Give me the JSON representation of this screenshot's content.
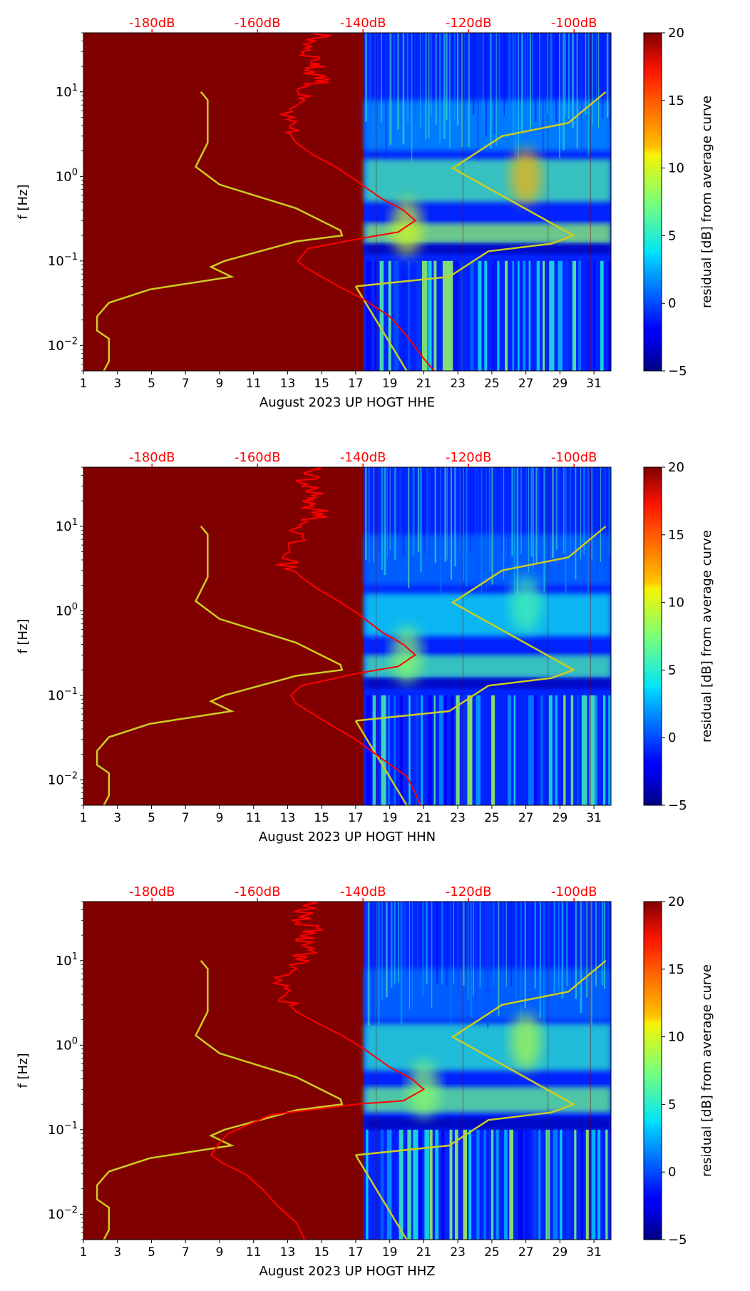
{
  "figure": {
    "background": "#ffffff",
    "colormap": "jet",
    "left_fill_color": "#800000",
    "psd_curve_color": "#ff0000",
    "noise_model_color": "#cccc22"
  },
  "chart_data": [
    {
      "type": "heatmap",
      "xlabel": "August 2023 UP HOGT  HHE",
      "ylabel": "f [Hz]",
      "x_ticks": [
        "1",
        "3",
        "5",
        "7",
        "9",
        "11",
        "13",
        "15",
        "17",
        "19",
        "21",
        "23",
        "25",
        "27",
        "29",
        "31"
      ],
      "x_range": [
        1,
        32
      ],
      "y_scale": "log",
      "y_range": [
        0.005,
        50
      ],
      "y_tick_labels": [
        {
          "base": "10",
          "exp": "1",
          "value": 10
        },
        {
          "base": "10",
          "exp": "0",
          "value": 1
        },
        {
          "base": "10",
          "exp": "−1",
          "value": 0.1
        },
        {
          "base": "10",
          "exp": "−2",
          "value": 0.01
        }
      ],
      "top_axis": {
        "color": "#ff0000",
        "labels": [
          "-180dB",
          "-160dB",
          "-140dB",
          "-120dB",
          "-100dB"
        ],
        "values": [
          -180,
          -160,
          -140,
          -120,
          -100
        ],
        "range": [
          -193,
          -93
        ]
      },
      "data_start_day": 17.5,
      "colorbar": {
        "label": "residual [dB] from average curve",
        "range": [
          -5,
          20
        ],
        "ticks": [
          "20",
          "15",
          "10",
          "5",
          "0",
          "−5"
        ],
        "values": [
          20,
          15,
          10,
          5,
          0,
          -5
        ]
      },
      "noise_model_curve": [
        [
          7.9,
          10
        ],
        [
          8.3,
          8
        ],
        [
          8.3,
          2.5
        ],
        [
          7.6,
          1.3
        ],
        [
          9.0,
          0.8
        ],
        [
          13.5,
          0.42
        ],
        [
          16.1,
          0.23
        ],
        [
          16.2,
          0.2
        ],
        [
          13.5,
          0.17
        ],
        [
          9.3,
          0.1
        ],
        [
          8.5,
          0.085
        ],
        [
          9.7,
          0.065
        ],
        [
          4.9,
          0.046
        ],
        [
          2.5,
          0.032
        ],
        [
          1.8,
          0.022
        ],
        [
          1.8,
          0.015
        ],
        [
          2.5,
          0.012
        ],
        [
          2.5,
          0.0065
        ],
        [
          2.2,
          0.005
        ]
      ],
      "psd_curve": [
        [
          15.0,
          50
        ],
        [
          14.5,
          40
        ],
        [
          14.2,
          30
        ],
        [
          14.8,
          22
        ],
        [
          14.3,
          18
        ],
        [
          15.2,
          14
        ],
        [
          14.0,
          11
        ],
        [
          13.5,
          8
        ],
        [
          12.8,
          5
        ],
        [
          13.0,
          3.5
        ],
        [
          13.5,
          2.5
        ],
        [
          14.5,
          1.8
        ],
        [
          15.8,
          1.3
        ],
        [
          17.0,
          0.9
        ],
        [
          18.5,
          0.55
        ],
        [
          19.8,
          0.4
        ],
        [
          20.5,
          0.3
        ],
        [
          19.5,
          0.22
        ],
        [
          17.0,
          0.18
        ],
        [
          14.2,
          0.14
        ],
        [
          13.6,
          0.1
        ],
        [
          14.0,
          0.085
        ],
        [
          15.0,
          0.065
        ],
        [
          16.0,
          0.05
        ],
        [
          17.5,
          0.035
        ],
        [
          19.0,
          0.022
        ],
        [
          20.0,
          0.013
        ],
        [
          21.0,
          0.007
        ],
        [
          21.6,
          0.005
        ]
      ],
      "background_curve": [
        [
          17.0,
          0.05
        ],
        [
          20.0,
          0.005
        ]
      ],
      "spectral_bands": [
        {
          "f_lo": 0.16,
          "f_hi": 0.28,
          "level": 8
        },
        {
          "f_lo": 0.5,
          "f_hi": 1.6,
          "level": 6
        },
        {
          "f_lo": 0.12,
          "f_hi": 0.16,
          "level": -4
        },
        {
          "f_lo": 2,
          "f_hi": 8,
          "level": 2
        }
      ],
      "hotspots": [
        {
          "day": 27,
          "f": 1.0,
          "level": 12
        },
        {
          "day": 20,
          "f": 0.25,
          "level": 10
        }
      ],
      "residual_panel_trend": [
        [
          17.0,
          0.05
        ],
        [
          22.5,
          0.065
        ],
        [
          24.8,
          0.13
        ],
        [
          28.5,
          0.16
        ],
        [
          29.8,
          0.2
        ],
        [
          22.7,
          1.25
        ],
        [
          25.6,
          3.0
        ],
        [
          29.5,
          4.3
        ],
        [
          31.7,
          10.0
        ]
      ]
    },
    {
      "type": "heatmap",
      "xlabel": "August 2023 UP HOGT  HHN",
      "ylabel": "f [Hz]",
      "x_ticks": [
        "1",
        "3",
        "5",
        "7",
        "9",
        "11",
        "13",
        "15",
        "17",
        "19",
        "21",
        "23",
        "25",
        "27",
        "29",
        "31"
      ],
      "x_range": [
        1,
        32
      ],
      "y_scale": "log",
      "y_range": [
        0.005,
        50
      ],
      "y_tick_labels": [
        {
          "base": "10",
          "exp": "1",
          "value": 10
        },
        {
          "base": "10",
          "exp": "0",
          "value": 1
        },
        {
          "base": "10",
          "exp": "−1",
          "value": 0.1
        },
        {
          "base": "10",
          "exp": "−2",
          "value": 0.01
        }
      ],
      "top_axis": {
        "color": "#ff0000",
        "labels": [
          "-180dB",
          "-160dB",
          "-140dB",
          "-120dB",
          "-100dB"
        ],
        "values": [
          -180,
          -160,
          -140,
          -120,
          -100
        ],
        "range": [
          -193,
          -93
        ]
      },
      "data_start_day": 17.5,
      "colorbar": {
        "label": "residual [dB] from average curve",
        "range": [
          -5,
          20
        ],
        "ticks": [
          "20",
          "15",
          "10",
          "5",
          "0",
          "−5"
        ],
        "values": [
          20,
          15,
          10,
          5,
          0,
          -5
        ]
      },
      "noise_model_curve": [
        [
          7.9,
          10
        ],
        [
          8.3,
          8
        ],
        [
          8.3,
          2.5
        ],
        [
          7.6,
          1.3
        ],
        [
          9.0,
          0.8
        ],
        [
          13.5,
          0.42
        ],
        [
          16.1,
          0.23
        ],
        [
          16.2,
          0.2
        ],
        [
          13.5,
          0.17
        ],
        [
          9.3,
          0.1
        ],
        [
          8.5,
          0.085
        ],
        [
          9.7,
          0.065
        ],
        [
          4.9,
          0.046
        ],
        [
          2.5,
          0.032
        ],
        [
          1.8,
          0.022
        ],
        [
          1.8,
          0.015
        ],
        [
          2.5,
          0.012
        ],
        [
          2.5,
          0.0065
        ],
        [
          2.2,
          0.005
        ]
      ],
      "psd_curve": [
        [
          14.8,
          50
        ],
        [
          14.2,
          40
        ],
        [
          14.0,
          30
        ],
        [
          14.8,
          22
        ],
        [
          14.2,
          18
        ],
        [
          15.2,
          14
        ],
        [
          14.0,
          11
        ],
        [
          13.5,
          8
        ],
        [
          13.0,
          5
        ],
        [
          13.0,
          3.5
        ],
        [
          13.8,
          2.5
        ],
        [
          14.8,
          1.8
        ],
        [
          16.0,
          1.3
        ],
        [
          17.2,
          0.9
        ],
        [
          18.6,
          0.55
        ],
        [
          19.8,
          0.4
        ],
        [
          20.5,
          0.3
        ],
        [
          19.5,
          0.22
        ],
        [
          17.0,
          0.18
        ],
        [
          13.8,
          0.13
        ],
        [
          13.2,
          0.1
        ],
        [
          13.5,
          0.08
        ],
        [
          14.5,
          0.06
        ],
        [
          15.5,
          0.045
        ],
        [
          17.0,
          0.03
        ],
        [
          18.5,
          0.018
        ],
        [
          20.0,
          0.011
        ],
        [
          20.5,
          0.007
        ],
        [
          20.8,
          0.005
        ]
      ],
      "background_curve": [
        [
          17.0,
          0.05
        ],
        [
          20.0,
          0.005
        ]
      ],
      "spectral_bands": [
        {
          "f_lo": 0.16,
          "f_hi": 0.3,
          "level": 6
        },
        {
          "f_lo": 0.5,
          "f_hi": 1.6,
          "level": 4
        },
        {
          "f_lo": 0.12,
          "f_hi": 0.16,
          "level": -4
        },
        {
          "f_lo": 2,
          "f_hi": 8,
          "level": 1
        }
      ],
      "hotspots": [
        {
          "day": 27,
          "f": 1.2,
          "level": 6
        },
        {
          "day": 20,
          "f": 0.3,
          "level": 8
        }
      ],
      "residual_panel_trend": [
        [
          17.0,
          0.05
        ],
        [
          22.5,
          0.065
        ],
        [
          24.8,
          0.13
        ],
        [
          28.5,
          0.16
        ],
        [
          29.8,
          0.2
        ],
        [
          22.7,
          1.25
        ],
        [
          25.6,
          3.0
        ],
        [
          29.5,
          4.3
        ],
        [
          31.7,
          10.0
        ]
      ]
    },
    {
      "type": "heatmap",
      "xlabel": "August 2023 UP HOGT  HHZ",
      "ylabel": "f [Hz]",
      "x_ticks": [
        "1",
        "3",
        "5",
        "7",
        "9",
        "11",
        "13",
        "15",
        "17",
        "19",
        "21",
        "23",
        "25",
        "27",
        "29",
        "31"
      ],
      "x_range": [
        1,
        32
      ],
      "y_scale": "log",
      "y_range": [
        0.005,
        50
      ],
      "y_tick_labels": [
        {
          "base": "10",
          "exp": "1",
          "value": 10
        },
        {
          "base": "10",
          "exp": "0",
          "value": 1
        },
        {
          "base": "10",
          "exp": "−1",
          "value": 0.1
        },
        {
          "base": "10",
          "exp": "−2",
          "value": 0.01
        }
      ],
      "top_axis": {
        "color": "#ff0000",
        "labels": [
          "-180dB",
          "-160dB",
          "-140dB",
          "-120dB",
          "-100dB"
        ],
        "values": [
          -180,
          -160,
          -140,
          -120,
          -100
        ],
        "range": [
          -193,
          -93
        ]
      },
      "data_start_day": 17.5,
      "colorbar": {
        "label": "residual [dB] from average curve",
        "range": [
          -5,
          20
        ],
        "ticks": [
          "20",
          "15",
          "10",
          "5",
          "0",
          "−5"
        ],
        "values": [
          20,
          15,
          10,
          5,
          0,
          -5
        ]
      },
      "noise_model_curve": [
        [
          7.9,
          10
        ],
        [
          8.3,
          8
        ],
        [
          8.3,
          2.5
        ],
        [
          7.6,
          1.3
        ],
        [
          9.0,
          0.8
        ],
        [
          13.5,
          0.42
        ],
        [
          16.1,
          0.23
        ],
        [
          16.2,
          0.2
        ],
        [
          13.5,
          0.17
        ],
        [
          9.3,
          0.1
        ],
        [
          8.5,
          0.085
        ],
        [
          9.7,
          0.065
        ],
        [
          4.9,
          0.046
        ],
        [
          2.5,
          0.032
        ],
        [
          1.8,
          0.022
        ],
        [
          1.8,
          0.015
        ],
        [
          2.5,
          0.012
        ],
        [
          2.5,
          0.0065
        ],
        [
          2.2,
          0.005
        ]
      ],
      "psd_curve": [
        [
          14.5,
          50
        ],
        [
          14.0,
          40
        ],
        [
          13.8,
          30
        ],
        [
          14.5,
          22
        ],
        [
          13.9,
          18
        ],
        [
          14.8,
          14
        ],
        [
          13.8,
          11
        ],
        [
          13.3,
          8
        ],
        [
          12.5,
          5
        ],
        [
          12.8,
          3.5
        ],
        [
          13.5,
          2.5
        ],
        [
          14.8,
          1.8
        ],
        [
          16.2,
          1.3
        ],
        [
          17.5,
          0.9
        ],
        [
          19.0,
          0.55
        ],
        [
          20.3,
          0.4
        ],
        [
          21.0,
          0.3
        ],
        [
          19.8,
          0.22
        ],
        [
          17.0,
          0.2
        ],
        [
          12.0,
          0.15
        ],
        [
          10.5,
          0.11
        ],
        [
          9.5,
          0.09
        ],
        [
          9.0,
          0.07
        ],
        [
          8.5,
          0.05
        ],
        [
          9.2,
          0.04
        ],
        [
          10.5,
          0.03
        ],
        [
          11.5,
          0.02
        ],
        [
          12.5,
          0.012
        ],
        [
          13.5,
          0.008
        ],
        [
          14.0,
          0.005
        ]
      ],
      "background_curve": [
        [
          17.0,
          0.05
        ],
        [
          20.0,
          0.005
        ]
      ],
      "spectral_bands": [
        {
          "f_lo": 0.16,
          "f_hi": 0.32,
          "level": 7
        },
        {
          "f_lo": 0.5,
          "f_hi": 1.8,
          "level": 5
        },
        {
          "f_lo": 0.1,
          "f_hi": 0.14,
          "level": -4
        },
        {
          "f_lo": 2,
          "f_hi": 8,
          "level": 1
        }
      ],
      "hotspots": [
        {
          "day": 27,
          "f": 1.1,
          "level": 9
        },
        {
          "day": 21,
          "f": 0.3,
          "level": 8
        }
      ],
      "residual_panel_trend": [
        [
          17.0,
          0.05
        ],
        [
          22.5,
          0.065
        ],
        [
          24.8,
          0.13
        ],
        [
          28.5,
          0.16
        ],
        [
          29.8,
          0.2
        ],
        [
          22.7,
          1.25
        ],
        [
          25.6,
          3.0
        ],
        [
          29.5,
          4.3
        ],
        [
          31.7,
          10.0
        ]
      ]
    }
  ]
}
